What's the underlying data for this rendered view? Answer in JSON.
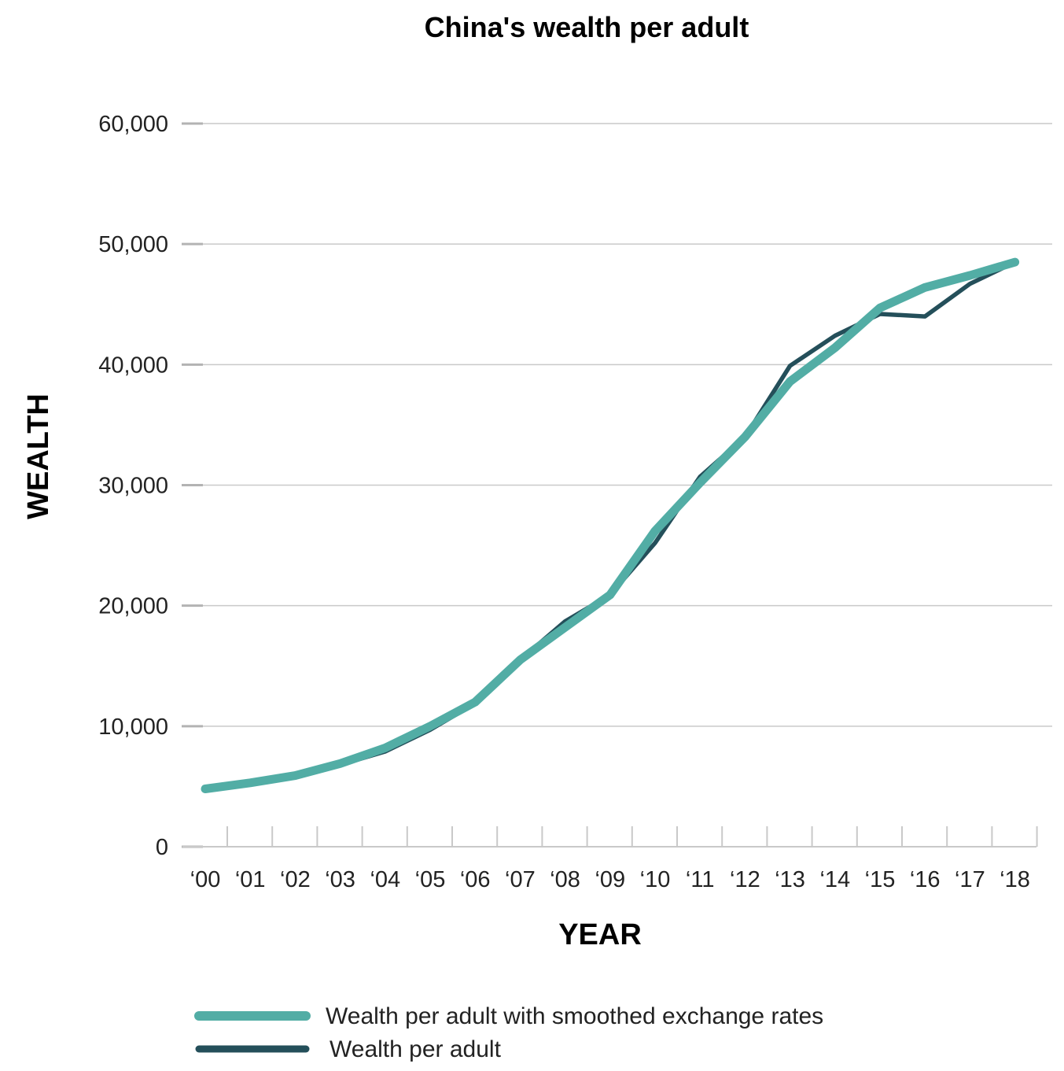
{
  "chart_data": {
    "type": "line",
    "title": "China's wealth per adult",
    "xlabel": "YEAR",
    "ylabel": "WEALTH",
    "categories": [
      "‘00",
      "‘01",
      "‘02",
      "‘03",
      "‘04",
      "‘05",
      "‘06",
      "‘07",
      "‘08",
      "‘09",
      "‘10",
      "‘11",
      "‘12",
      "‘13",
      "‘14",
      "‘15",
      "‘16",
      "‘17",
      "‘18"
    ],
    "yticks": [
      "0",
      "10,000",
      "20,000",
      "30,000",
      "40,000",
      "50,000",
      "60,000"
    ],
    "ytick_values": [
      0,
      10000,
      20000,
      30000,
      40000,
      50000,
      60000
    ],
    "ylim": [
      0,
      60000
    ],
    "grid": true,
    "legend_position": "bottom-left",
    "series": [
      {
        "name": "Wealth per adult with smoothed exchange rates",
        "color": "#52ada5",
        "values": [
          4800,
          5300,
          5900,
          6900,
          8200,
          10000,
          12000,
          15500,
          18200,
          20900,
          26200,
          30200,
          34000,
          38600,
          41400,
          44700,
          46400,
          47400,
          48500
        ]
      },
      {
        "name": "Wealth per adult",
        "color": "#244f5a",
        "values": [
          4800,
          5300,
          5900,
          6800,
          7900,
          9700,
          11900,
          15500,
          18700,
          20900,
          25200,
          30700,
          34000,
          39900,
          42400,
          44200,
          44000,
          46700,
          48500
        ]
      }
    ]
  }
}
